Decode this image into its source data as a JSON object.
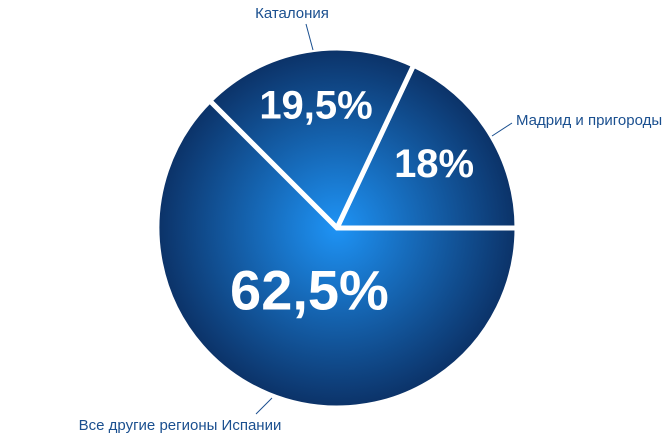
{
  "chart_data": {
    "type": "pie",
    "categories": [
      "Мадрид и пригороды",
      "Каталония",
      "Все другие регионы Испании"
    ],
    "values": [
      18,
      19.5,
      62.5
    ],
    "value_labels": [
      "18%",
      "19,5%",
      "62,5%"
    ],
    "gradient": [
      "#1e93f5",
      "#0b2f63"
    ]
  }
}
